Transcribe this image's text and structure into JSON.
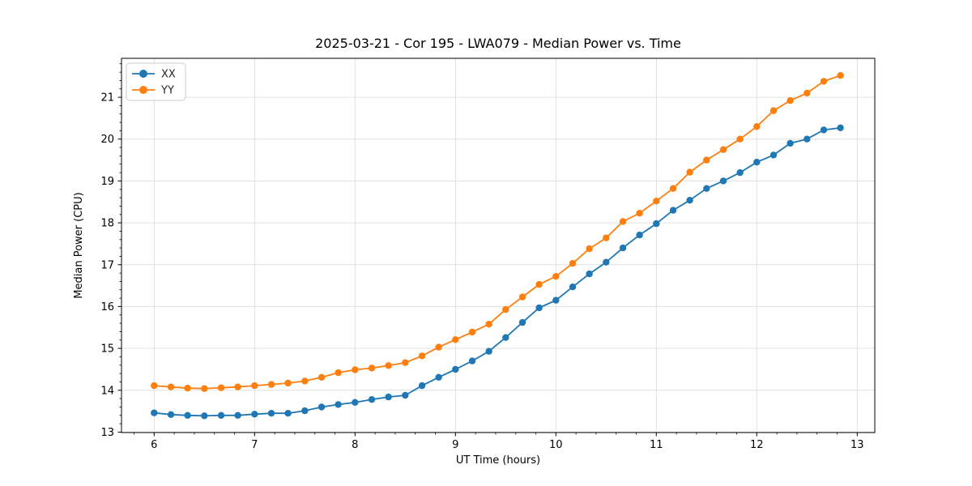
{
  "chart_data": {
    "type": "line",
    "title": "2025-03-21 - Cor 195 - LWA079 - Median Power vs. Time",
    "xlabel": "UT Time (hours)",
    "ylabel": "Median Power (CPU)",
    "xlim": [
      5.675,
      13.175
    ],
    "ylim": [
      12.99,
      21.93
    ],
    "xticks": [
      6,
      7,
      8,
      9,
      10,
      11,
      12,
      13
    ],
    "yticks": [
      13,
      14,
      15,
      16,
      17,
      18,
      19,
      20,
      21
    ],
    "minor_subdivisions": 5,
    "grid": true,
    "grid_color": "#e0e0e0",
    "spine_color": "#000000",
    "tick_color": "#000000",
    "legend": {
      "position": "upper left"
    },
    "x": [
      6.0,
      6.167,
      6.333,
      6.5,
      6.667,
      6.833,
      7.0,
      7.167,
      7.333,
      7.5,
      7.667,
      7.833,
      8.0,
      8.167,
      8.333,
      8.5,
      8.667,
      8.833,
      9.0,
      9.167,
      9.333,
      9.5,
      9.667,
      9.833,
      10.0,
      10.167,
      10.333,
      10.5,
      10.667,
      10.833,
      11.0,
      11.167,
      11.333,
      11.5,
      11.667,
      11.833,
      12.0,
      12.167,
      12.333,
      12.5,
      12.667,
      12.833
    ],
    "series": [
      {
        "name": "XX",
        "color": "#1f77b4",
        "marker": "circle",
        "values": [
          13.46,
          13.42,
          13.4,
          13.39,
          13.4,
          13.4,
          13.43,
          13.45,
          13.45,
          13.51,
          13.6,
          13.66,
          13.71,
          13.78,
          13.84,
          13.88,
          14.11,
          14.31,
          14.5,
          14.7,
          14.93,
          15.26,
          15.62,
          15.97,
          16.15,
          16.47,
          16.78,
          17.06,
          17.4,
          17.71,
          17.98,
          18.3,
          18.54,
          18.82,
          19.0,
          19.2,
          19.45,
          19.62,
          19.9,
          20.0,
          20.22,
          20.27
        ]
      },
      {
        "name": "YY",
        "color": "#ff7f0e",
        "marker": "circle",
        "values": [
          14.11,
          14.08,
          14.05,
          14.04,
          14.06,
          14.08,
          14.11,
          14.14,
          14.17,
          14.22,
          14.31,
          14.42,
          14.49,
          14.53,
          14.59,
          14.66,
          14.82,
          15.03,
          15.21,
          15.39,
          15.58,
          15.93,
          16.23,
          16.53,
          16.72,
          17.03,
          17.38,
          17.64,
          18.03,
          18.23,
          18.52,
          18.82,
          19.21,
          19.5,
          19.75,
          20.0,
          20.3,
          20.68,
          20.92,
          21.1,
          21.38,
          21.52
        ]
      }
    ]
  }
}
